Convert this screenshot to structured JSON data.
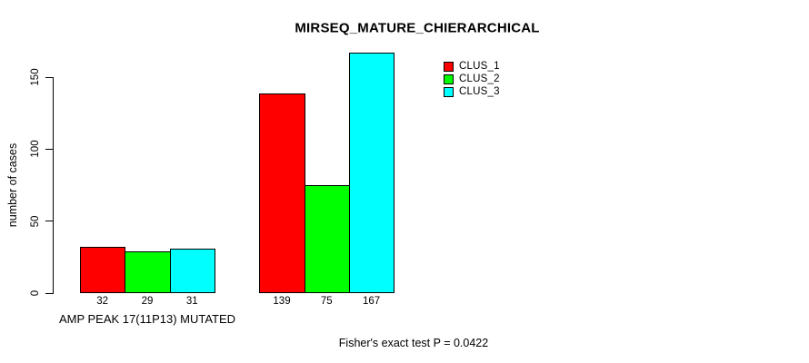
{
  "chart_data": {
    "type": "bar",
    "title": "MIRSEQ_MATURE_CHIERARCHICAL",
    "ylabel": "number of cases",
    "xlabel": "",
    "categories": [
      "AMP PEAK 17(11P13) MUTATED",
      ""
    ],
    "series": [
      {
        "name": "CLUS_1",
        "color": "#FF0000",
        "values": [
          32,
          139
        ]
      },
      {
        "name": "CLUS_2",
        "color": "#00FF00",
        "values": [
          29,
          75
        ]
      },
      {
        "name": "CLUS_3",
        "color": "#00FFFF",
        "values": [
          31,
          167
        ]
      }
    ],
    "y_ticks": [
      0,
      50,
      100,
      150
    ],
    "ylim": [
      0,
      150
    ],
    "grid": false,
    "legend_position": "top-right-inside",
    "bar_value_labels": true,
    "footnote": "Fisher's exact test P = 0.0422"
  }
}
